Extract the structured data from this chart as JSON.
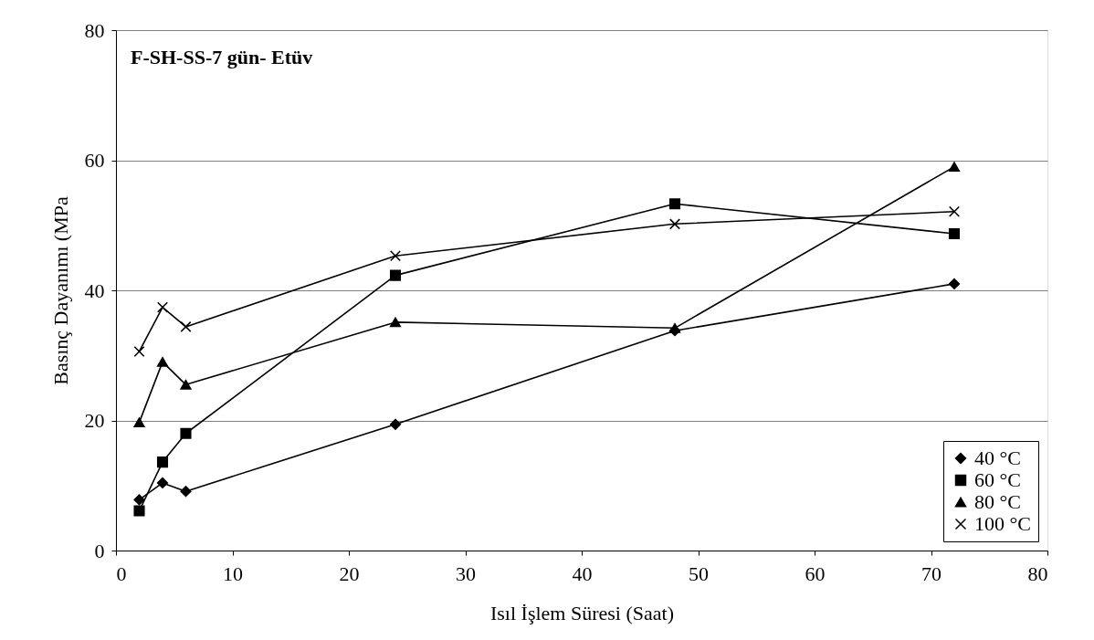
{
  "chart_data": {
    "type": "line",
    "title": "F-SH-SS-7 gün- Etüv",
    "xlabel": "Isıl İşlem Süresi (Saat)",
    "ylabel": "Basınç Dayanımı (MPa",
    "x": [
      2,
      4,
      6,
      24,
      48,
      72
    ],
    "series": [
      {
        "name": "40 °C",
        "color": "#000000",
        "marker": "diamond",
        "values": [
          7.8,
          10.4,
          9.1,
          19.4,
          33.8,
          41.0
        ]
      },
      {
        "name": "60 °C",
        "color": "#000000",
        "marker": "square",
        "values": [
          6.1,
          13.6,
          18.0,
          42.3,
          53.3,
          48.7
        ]
      },
      {
        "name": "80 °C",
        "color": "#000000",
        "marker": "triangle",
        "values": [
          19.7,
          29.0,
          25.5,
          35.1,
          34.2,
          59.0
        ]
      },
      {
        "name": "100 °C",
        "color": "#000000",
        "marker": "cross",
        "values": [
          30.6,
          37.4,
          34.4,
          45.3,
          50.2,
          52.1
        ]
      }
    ],
    "xlim": [
      0,
      80
    ],
    "xticks": [
      0,
      10,
      20,
      30,
      40,
      50,
      60,
      70,
      80
    ],
    "ylim": [
      0,
      80
    ],
    "yticks": [
      0,
      20,
      40,
      60,
      80
    ],
    "grid": "y",
    "legend": "bottom right",
    "line_style": "solid"
  }
}
